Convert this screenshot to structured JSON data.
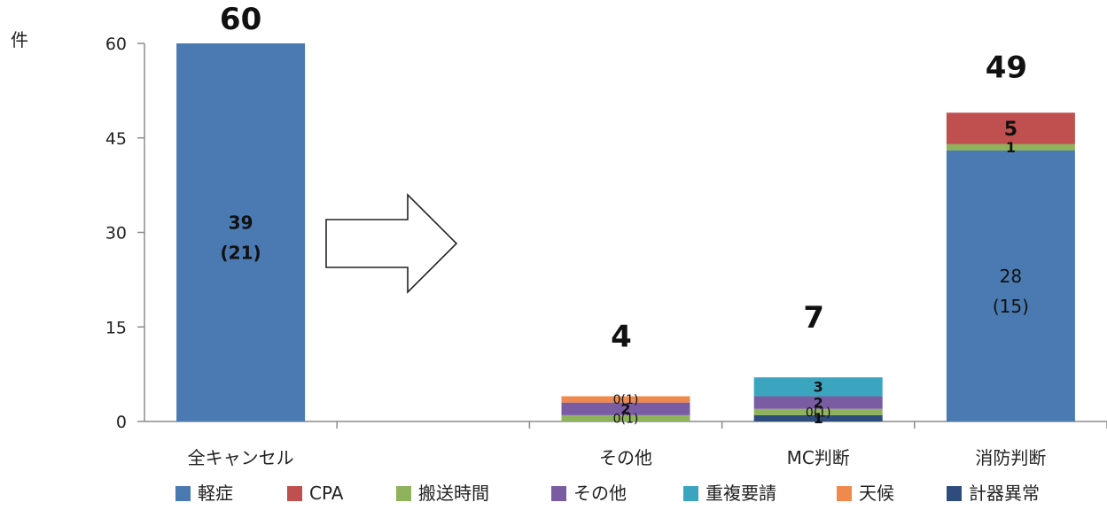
{
  "chart_data": {
    "type": "bar",
    "stacked": true,
    "unit_label": "件",
    "ylim": [
      0,
      60
    ],
    "yticks": [
      "0",
      "15",
      "30",
      "45",
      "60"
    ],
    "categories": [
      "全キャンセル",
      "",
      "その他",
      "MC判断",
      "消防判断"
    ],
    "totals": [
      "60",
      "",
      "4",
      "7",
      "49"
    ],
    "series": [
      {
        "name": "軽症",
        "color": "#4a7ab1",
        "values": [
          60,
          0,
          0,
          0,
          43
        ]
      },
      {
        "name": "計器異常",
        "color": "#2e4c7c",
        "values": [
          0,
          0,
          0,
          1,
          0
        ]
      },
      {
        "name": "搬送時間",
        "color": "#8fb25c",
        "values": [
          0,
          0,
          1,
          1,
          1
        ]
      },
      {
        "name": "その他",
        "color": "#7a5ca3",
        "values": [
          0,
          0,
          2,
          2,
          0
        ]
      },
      {
        "name": "重複要請",
        "color": "#3ba5bf",
        "values": [
          0,
          0,
          0,
          3,
          0
        ]
      },
      {
        "name": "天候",
        "color": "#ef8a4c",
        "values": [
          0,
          0,
          1,
          0,
          0
        ]
      },
      {
        "name": "CPA",
        "color": "#c0504f",
        "values": [
          0,
          0,
          0,
          0,
          5
        ]
      }
    ],
    "segment_labels": [
      {
        "cat": 0,
        "line1": "39",
        "line2": "(21)",
        "bold": true,
        "color": "#ffffff",
        "size": 20
      },
      {
        "cat": 2,
        "series": "搬送時間",
        "text": "0(1)",
        "bold": false,
        "color": "#111111",
        "size": 14
      },
      {
        "cat": 2,
        "series": "その他",
        "text": "2",
        "bold": true,
        "color": "#111111",
        "size": 16
      },
      {
        "cat": 2,
        "series": "天候",
        "text": "0(1)",
        "bold": false,
        "color": "#111111",
        "size": 14
      },
      {
        "cat": 3,
        "series": "計器異常",
        "text": "1",
        "bold": true,
        "color": "#111111",
        "size": 16
      },
      {
        "cat": 3,
        "series": "搬送時間",
        "text": "0(1)",
        "bold": false,
        "color": "#111111",
        "size": 14
      },
      {
        "cat": 3,
        "series": "その他",
        "text": "2",
        "bold": true,
        "color": "#111111",
        "size": 16
      },
      {
        "cat": 3,
        "series": "重複要請",
        "text": "3",
        "bold": true,
        "color": "#111111",
        "size": 16
      },
      {
        "cat": 4,
        "series": "軽症",
        "line1": "28",
        "line2": "(15)",
        "bold": false,
        "color": "#ffffff",
        "size": 20
      },
      {
        "cat": 4,
        "series": "CPA",
        "text": "5",
        "bold": true,
        "color": "#111111",
        "size": 22
      },
      {
        "cat": 4,
        "series": "搬送時間",
        "text": "1",
        "bold": true,
        "color": "#111111",
        "size": 16
      }
    ],
    "legend": [
      {
        "name": "軽症",
        "color": "#4a7ab1"
      },
      {
        "name": "CPA",
        "color": "#c0504f"
      },
      {
        "name": "搬送時間",
        "color": "#8fb25c"
      },
      {
        "name": "その他",
        "color": "#7a5ca3"
      },
      {
        "name": "重複要請",
        "color": "#3ba5bf"
      },
      {
        "name": "天候",
        "color": "#ef8a4c"
      },
      {
        "name": "計器異常",
        "color": "#2e4c7c"
      }
    ],
    "legend_position": "bottom",
    "grid": false,
    "annotation": "right-arrow"
  }
}
